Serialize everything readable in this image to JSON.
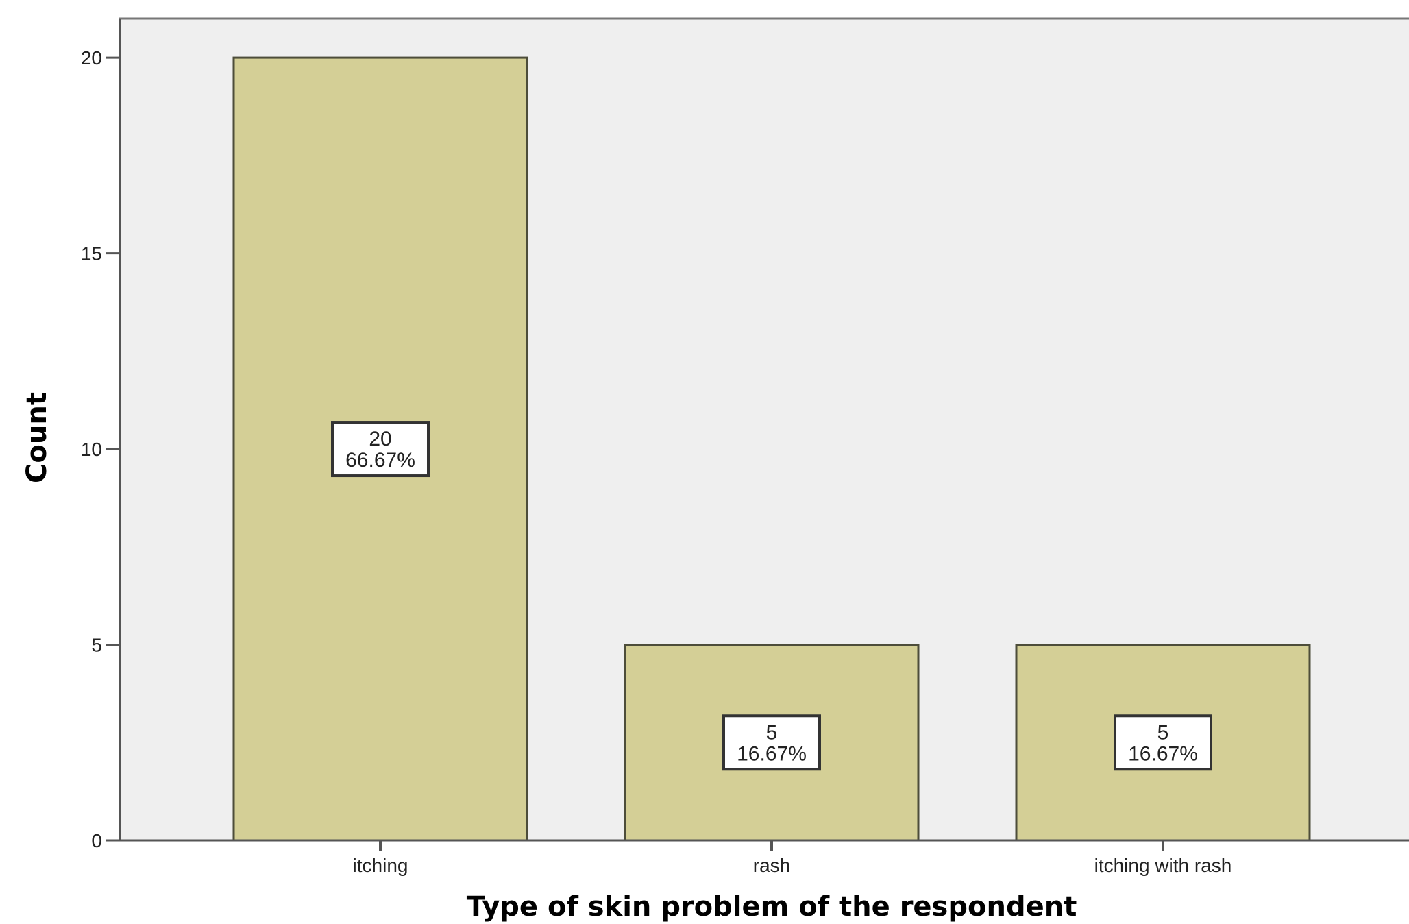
{
  "chart_data": {
    "type": "bar",
    "categories": [
      "itching",
      "rash",
      "itching with rash"
    ],
    "values": [
      20,
      5,
      5
    ],
    "data_labels": [
      {
        "count": "20",
        "percent": "66.67%"
      },
      {
        "count": "5",
        "percent": "16.67%"
      },
      {
        "count": "5",
        "percent": "16.67%"
      }
    ],
    "title": "",
    "xlabel": "Type of skin problem of the respondent",
    "ylabel": "Count",
    "ylim": [
      0,
      21
    ],
    "yticks": [
      0,
      5,
      10,
      15,
      20
    ],
    "ytick_labels": [
      "0",
      "5",
      "10",
      "15",
      "20"
    ],
    "grid": false,
    "legend": "none",
    "colors": {
      "bar_fill": "#d4cf96",
      "bar_stroke": "#4d4d3a",
      "plot_background": "#efefef",
      "axis": "#555555"
    }
  }
}
